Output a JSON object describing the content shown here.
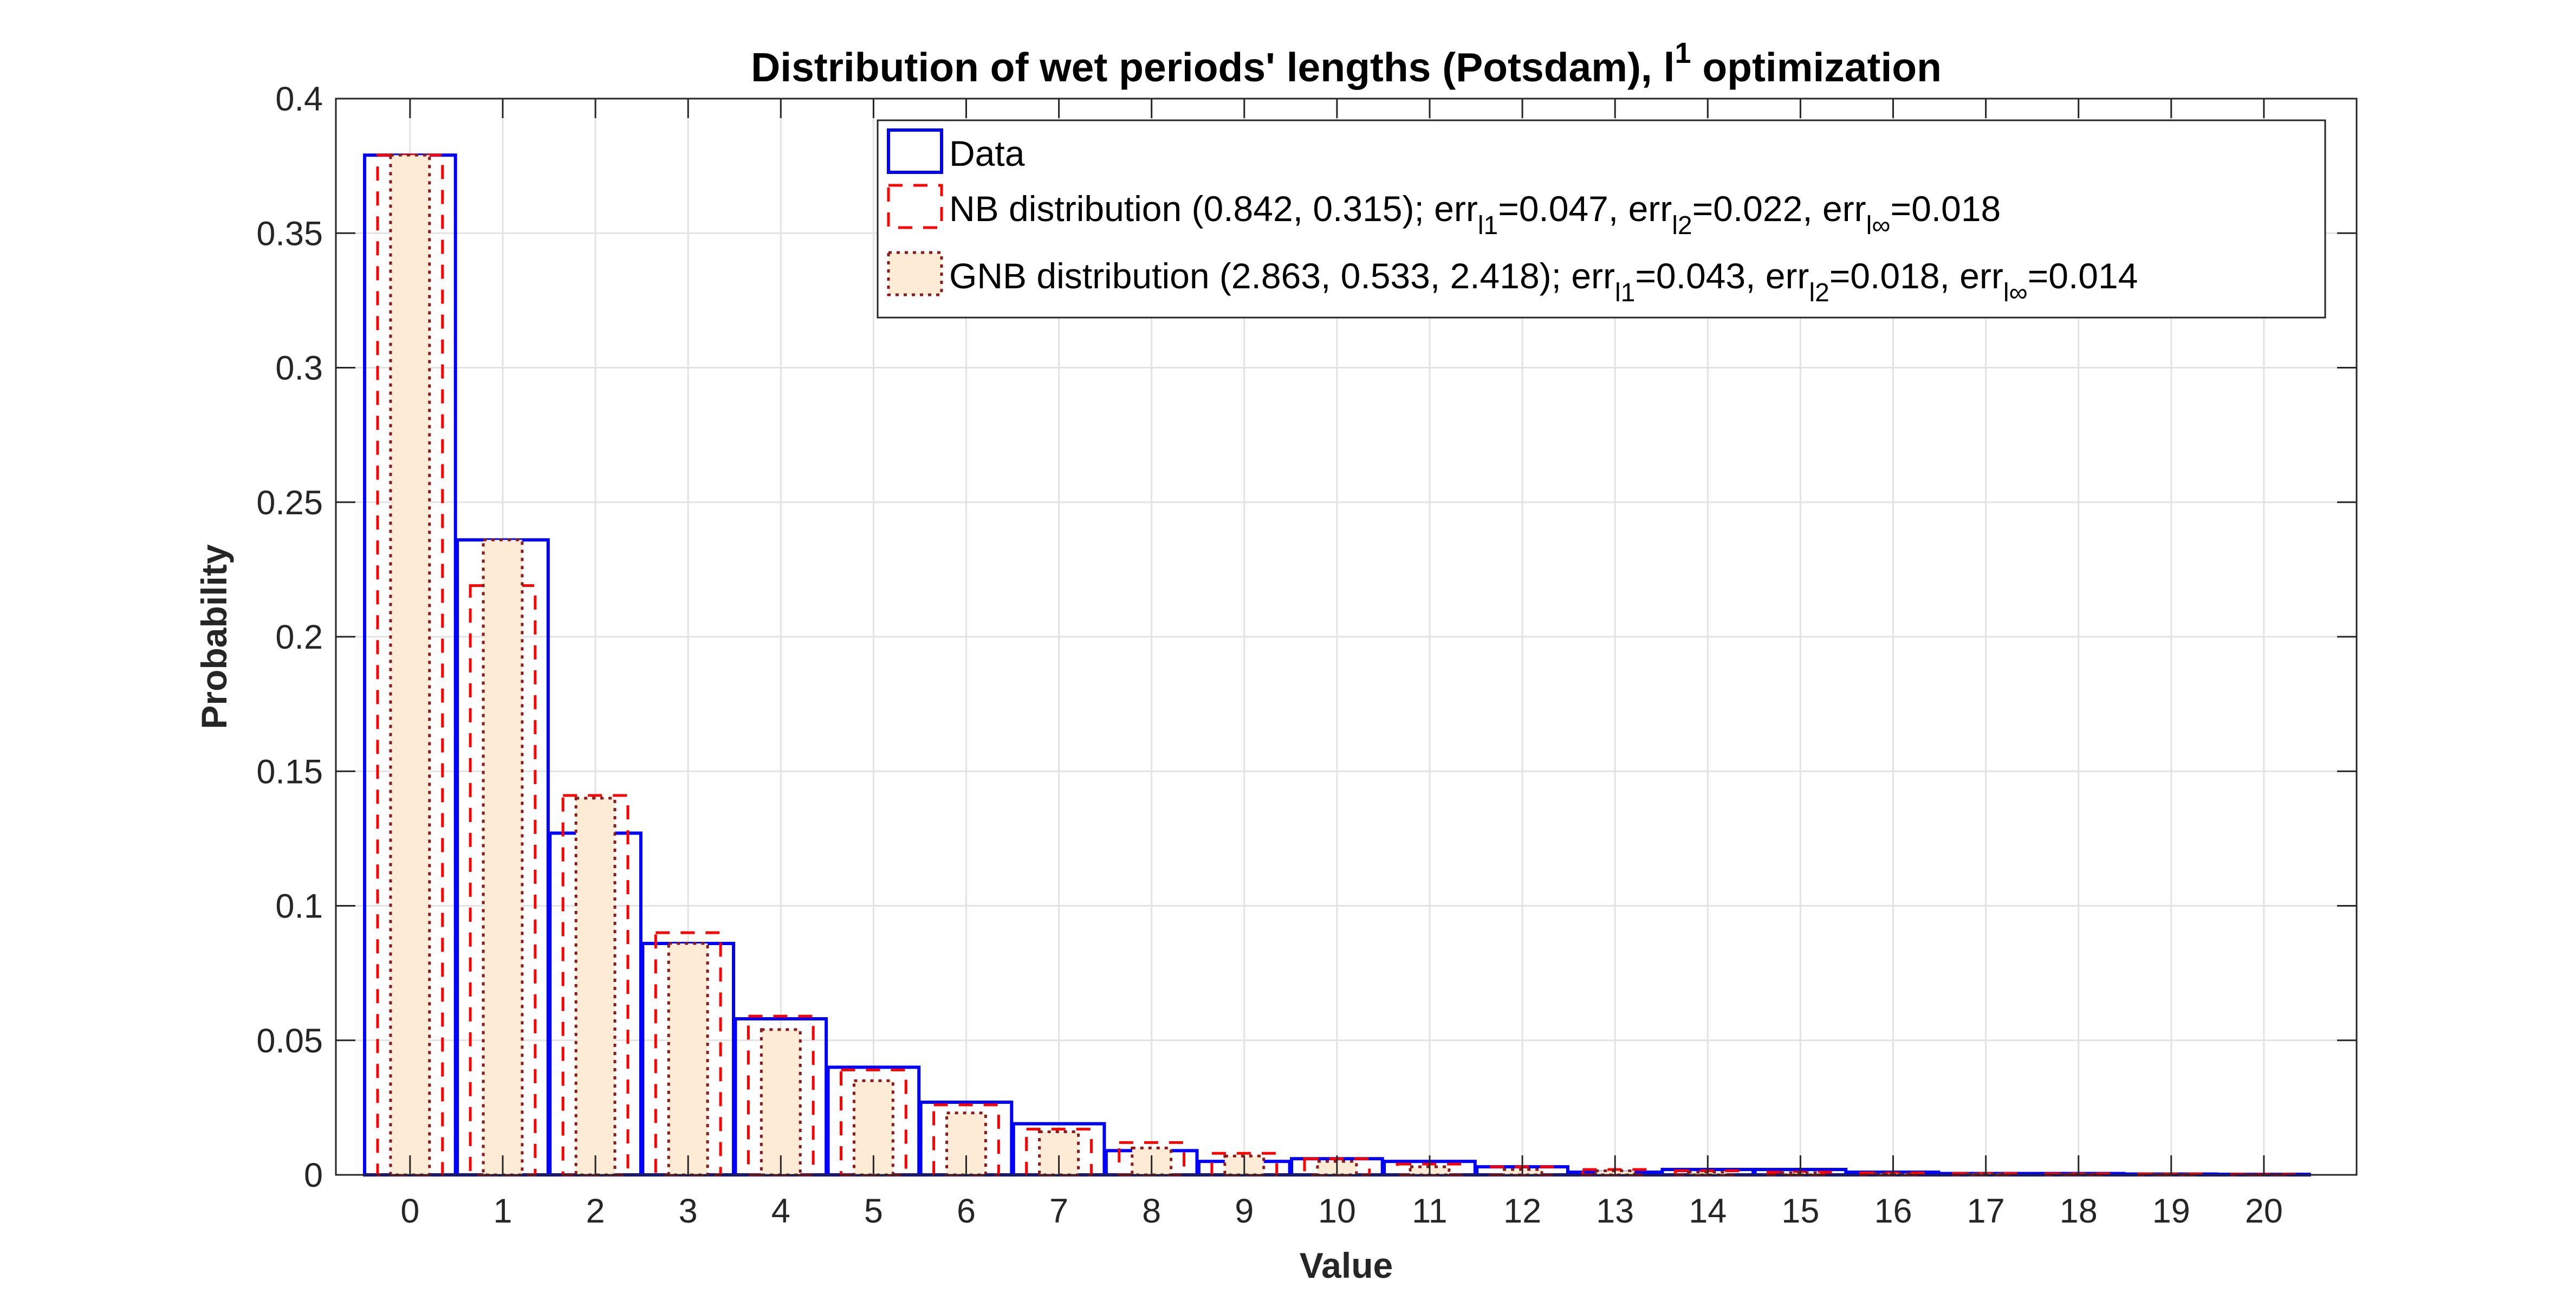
{
  "chart_data": {
    "type": "bar",
    "title": "Distribution of wet periods' lengths (Potsdam), l",
    "title_superscript": "1",
    "title_tail": " optimization",
    "xlabel": "Value",
    "ylabel": "Probability",
    "xlim": [
      -0.8,
      21
    ],
    "ylim": [
      0,
      0.4
    ],
    "grid": true,
    "legend_location": "top-right",
    "x_ticks": [
      "0",
      "1",
      "2",
      "3",
      "4",
      "5",
      "6",
      "7",
      "8",
      "9",
      "10",
      "11",
      "12",
      "13",
      "14",
      "15",
      "16",
      "17",
      "18",
      "19",
      "20"
    ],
    "y_ticks": [
      "0",
      "0.05",
      "0.1",
      "0.15",
      "0.2",
      "0.25",
      "0.3",
      "0.35",
      "0.4"
    ],
    "categories": [
      0,
      1,
      2,
      3,
      4,
      5,
      6,
      7,
      8,
      9,
      10,
      11,
      12,
      13,
      14,
      15,
      16,
      17,
      18,
      19,
      20
    ],
    "series": [
      {
        "name": "Data",
        "color": "#0000ff",
        "style": "solid",
        "values": [
          0.379,
          0.236,
          0.127,
          0.086,
          0.058,
          0.04,
          0.027,
          0.019,
          0.009,
          0.005,
          0.006,
          0.005,
          0.003,
          0.001,
          0.002,
          0.002,
          0.001,
          0.0005,
          0.0005,
          0.0003,
          0.0002
        ]
      },
      {
        "name": "NB distribution",
        "color": "#ff0000",
        "style": "dashed",
        "values": [
          0.379,
          0.219,
          0.141,
          0.09,
          0.059,
          0.039,
          0.026,
          0.017,
          0.012,
          0.008,
          0.006,
          0.004,
          0.003,
          0.002,
          0.0015,
          0.001,
          0.0007,
          0.0005,
          0.0004,
          0.0003,
          0.0002
        ]
      },
      {
        "name": "GNB distribution",
        "color": "#8b1a1a",
        "fill": "#fdebd5",
        "style": "dotted",
        "values": [
          0.379,
          0.236,
          0.14,
          0.086,
          0.054,
          0.035,
          0.023,
          0.016,
          0.01,
          0.007,
          0.005,
          0.003,
          0.002,
          0.0015,
          0.001,
          0.0008,
          0.0005,
          0.0004,
          0.0003,
          0.0002,
          0.0001
        ]
      }
    ],
    "legend": [
      {
        "series": "Data",
        "text": "Data",
        "color": "#0000ff",
        "style": "solid",
        "parts": []
      },
      {
        "series": "NB distribution",
        "color": "#ff0000",
        "style": "dashed",
        "parts": [
          {
            "t": "NB distribution (0.842, 0.315); err"
          },
          {
            "t": "l1",
            "sub": true
          },
          {
            "t": "=0.047, err"
          },
          {
            "t": "l2",
            "sub": true
          },
          {
            "t": "=0.022, err"
          },
          {
            "t": "l∞",
            "sub": true
          },
          {
            "t": "=0.018"
          }
        ]
      },
      {
        "series": "GNB distribution",
        "color": "#8b1a1a",
        "fill": "#fdebd5",
        "style": "dotted",
        "parts": [
          {
            "t": "GNB distribution (2.863, 0.533, 2.418); err"
          },
          {
            "t": "l1",
            "sub": true
          },
          {
            "t": "=0.043, err"
          },
          {
            "t": "l2",
            "sub": true
          },
          {
            "t": "=0.018, err"
          },
          {
            "t": "l∞",
            "sub": true
          },
          {
            "t": "=0.014"
          }
        ]
      }
    ]
  }
}
